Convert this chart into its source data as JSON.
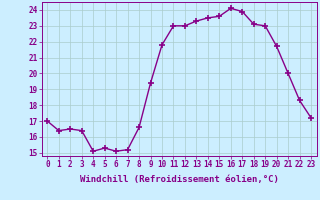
{
  "hours": [
    0,
    1,
    2,
    3,
    4,
    5,
    6,
    7,
    8,
    9,
    10,
    11,
    12,
    13,
    14,
    15,
    16,
    17,
    18,
    19,
    20,
    21,
    22,
    23
  ],
  "windchill": [
    17.0,
    16.4,
    16.5,
    16.4,
    15.1,
    15.3,
    15.1,
    15.2,
    16.6,
    19.4,
    21.8,
    23.0,
    23.0,
    23.3,
    23.5,
    23.6,
    24.1,
    23.9,
    23.1,
    23.0,
    21.7,
    20.0,
    18.3,
    17.2
  ],
  "line_color": "#880088",
  "marker": "+",
  "marker_size": 4,
  "marker_lw": 1.2,
  "line_width": 1.0,
  "bg_color": "#cceeff",
  "grid_color": "#aacccc",
  "xlabel": "Windchill (Refroidissement éolien,°C)",
  "xlabel_fontsize": 6.5,
  "tick_fontsize": 5.5,
  "ylim": [
    14.8,
    24.5
  ],
  "yticks": [
    15,
    16,
    17,
    18,
    19,
    20,
    21,
    22,
    23,
    24
  ],
  "xlim": [
    -0.5,
    23.5
  ]
}
